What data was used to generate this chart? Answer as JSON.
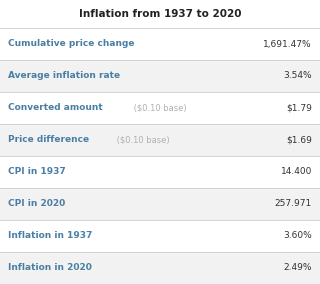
{
  "title": "Inflation from 1937 to 2020",
  "rows": [
    {
      "label": "Cumulative price change",
      "label_suffix": "",
      "value": "1,691.47%",
      "bg": "#ffffff"
    },
    {
      "label": "Average inflation rate",
      "label_suffix": "",
      "value": "3.54%",
      "bg": "#f2f2f2"
    },
    {
      "label": "Converted amount",
      "label_suffix": " ($0.10 base)",
      "value": "$1.79",
      "bg": "#ffffff"
    },
    {
      "label": "Price difference",
      "label_suffix": " ($0.10 base)",
      "value": "$1.69",
      "bg": "#f2f2f2"
    },
    {
      "label": "CPI in 1937",
      "label_suffix": "",
      "value": "14.400",
      "bg": "#ffffff"
    },
    {
      "label": "CPI in 2020",
      "label_suffix": "",
      "value": "257.971",
      "bg": "#f2f2f2"
    },
    {
      "label": "Inflation in 1937",
      "label_suffix": "",
      "value": "3.60%",
      "bg": "#ffffff"
    },
    {
      "label": "Inflation in 2020",
      "label_suffix": "",
      "value": "2.49%",
      "bg": "#f2f2f2"
    }
  ],
  "label_color": "#4a7fa5",
  "suffix_color": "#b0b0b0",
  "value_color": "#333333",
  "title_color": "#222222",
  "divider_color": "#cccccc",
  "title_fontsize": 7.5,
  "row_fontsize": 6.5,
  "suffix_fontsize": 6.0,
  "fig_width": 3.2,
  "fig_height": 2.84,
  "dpi": 100
}
